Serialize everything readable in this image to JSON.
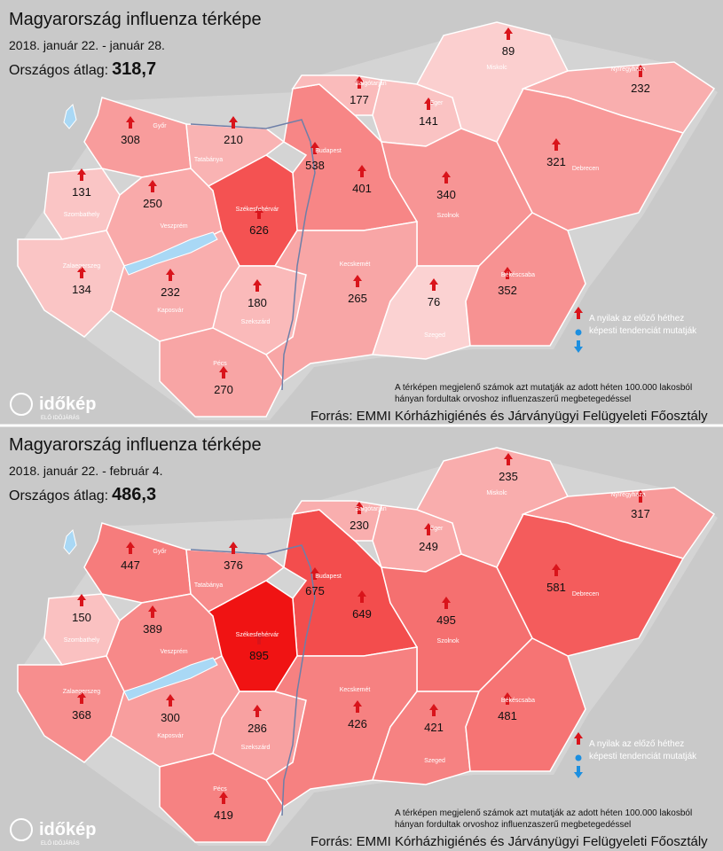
{
  "maps": [
    {
      "title": "Magyarország influenza térképe",
      "period": "2018.  január 22. - január 28.",
      "average_label": "Országos átlag:",
      "average": "318,7",
      "counties": [
        {
          "city": "Győr",
          "value": 308
        },
        {
          "city": "Tatabánya",
          "value": 210
        },
        {
          "city": "Budapest",
          "value": 538
        },
        {
          "city": null,
          "value": 401
        },
        {
          "city": "Salgótarján",
          "value": 177
        },
        {
          "city": "Eger",
          "value": 141
        },
        {
          "city": "Miskolc",
          "value": 89
        },
        {
          "city": "Nyíregyháza",
          "value": 232
        },
        {
          "city": "Debrecen",
          "value": 321
        },
        {
          "city": "Szolnok",
          "value": 340
        },
        {
          "city": "Szombathely",
          "value": 131
        },
        {
          "city": "Veszprém",
          "value": 250
        },
        {
          "city": "Székesfehérvár",
          "value": 626
        },
        {
          "city": "Zalaegerszeg",
          "value": 134
        },
        {
          "city": "Kaposvár",
          "value": 232
        },
        {
          "city": "Szekszárd",
          "value": 180
        },
        {
          "city": "Pécs",
          "value": 270
        },
        {
          "city": "Kecskemét",
          "value": 265
        },
        {
          "city": "Szeged",
          "value": 76
        },
        {
          "city": "Békéscsaba",
          "value": 352
        }
      ],
      "legend": [
        "A nyilak az előző héthez",
        "képesti tendenciát mutatják"
      ],
      "note": [
        "A térképen megjelenő számok azt mutatják az adott héten 100.000 lakosból",
        "hányan fordultak orvoshoz influenzaszerű megbetegedéssel"
      ],
      "source": "Forrás: EMMI Kórházhigiénés és Járványügyi Felügyeleti Főosztály"
    },
    {
      "title": "Magyarország influenza térképe",
      "period": "2018.  január 22. - február 4.",
      "average_label": "Országos átlag:",
      "average": "486,3",
      "counties": [
        {
          "city": "Győr",
          "value": 447
        },
        {
          "city": "Tatabánya",
          "value": 376
        },
        {
          "city": "Budapest",
          "value": 675
        },
        {
          "city": null,
          "value": 649
        },
        {
          "city": "Salgótarján",
          "value": 230
        },
        {
          "city": "Eger",
          "value": 249
        },
        {
          "city": "Miskolc",
          "value": 235
        },
        {
          "city": "Nyíregyháza",
          "value": 317
        },
        {
          "city": "Debrecen",
          "value": 581
        },
        {
          "city": "Szolnok",
          "value": 495
        },
        {
          "city": "Szombathely",
          "value": 150
        },
        {
          "city": "Veszprém",
          "value": 389
        },
        {
          "city": "Székesfehérvár",
          "value": 895
        },
        {
          "city": "Zalaegerszeg",
          "value": 368
        },
        {
          "city": "Kaposvár",
          "value": 300
        },
        {
          "city": "Szekszárd",
          "value": 286
        },
        {
          "city": "Pécs",
          "value": 419
        },
        {
          "city": "Kecskemét",
          "value": 426
        },
        {
          "city": "Szeged",
          "value": 421
        },
        {
          "city": "Békéscsaba",
          "value": 481
        }
      ],
      "legend": [
        "A nyilak az előző héthez",
        "képesti tendenciát mutatják"
      ],
      "note": [
        "A térképen megjelenő számok azt mutatják az adott héten 100.000 lakosból",
        "hányan fordultak orvoshoz influenzaszerű megbetegedéssel"
      ],
      "source": "Forrás: EMMI Kórházhigiénés és Járványügyi Felügyeleti Főosztály"
    }
  ],
  "logo": {
    "name": "időkép",
    "tagline": "ELŐ IDŐJÁRÁS"
  }
}
